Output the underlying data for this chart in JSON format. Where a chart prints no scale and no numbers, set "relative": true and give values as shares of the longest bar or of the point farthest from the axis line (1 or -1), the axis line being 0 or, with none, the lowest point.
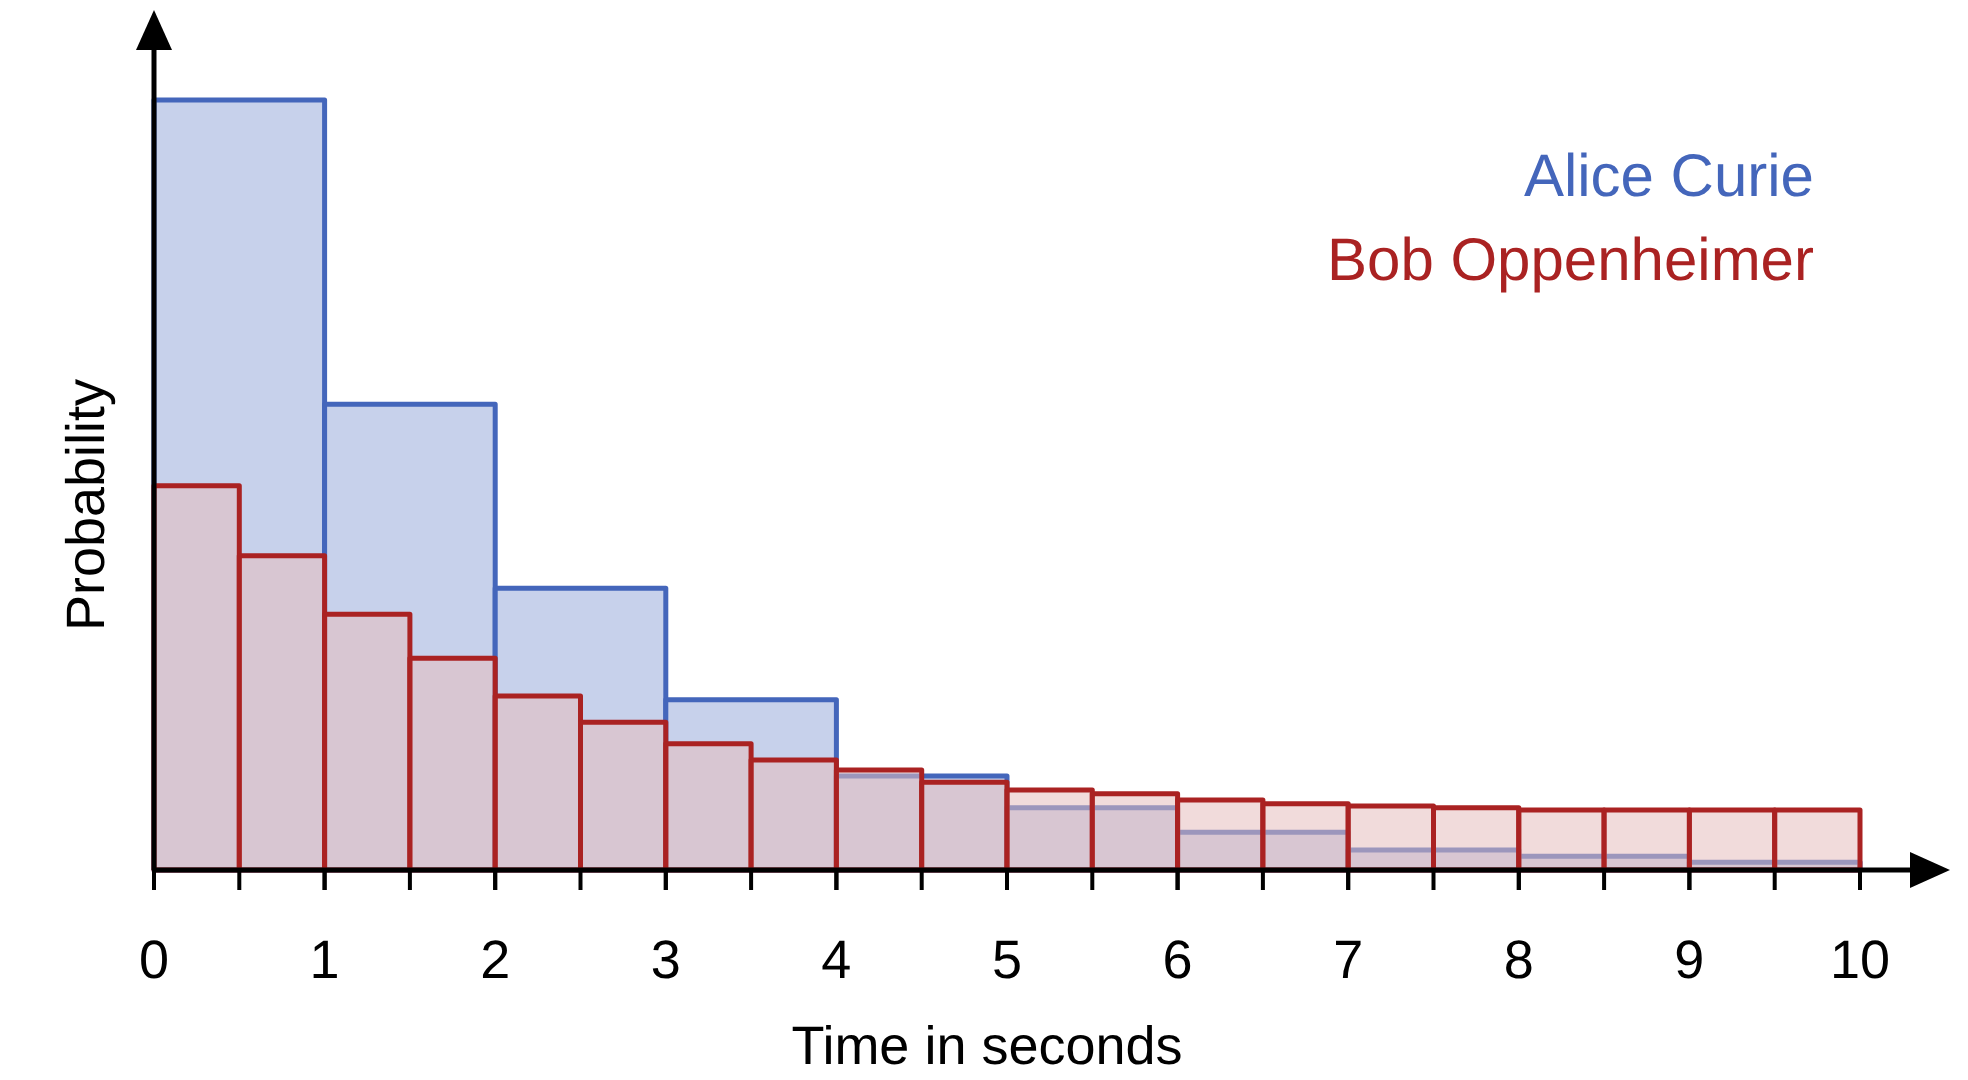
{
  "chart_data": {
    "type": "bar",
    "xlabel": "Time in seconds",
    "ylabel": "Probability",
    "relative": true,
    "xlim": [
      0,
      10
    ],
    "xticks": [
      0,
      1,
      2,
      3,
      4,
      5,
      6,
      7,
      8,
      9,
      10
    ],
    "grid": false,
    "series": [
      {
        "name": "Alice Curie",
        "color": "#4466bb",
        "x": [
          0.5,
          1.5,
          2.5,
          3.5,
          4.5,
          5.5,
          6.5,
          7.5,
          8.5,
          9.5
        ],
        "values": [
          1.0,
          0.605,
          0.366,
          0.221,
          0.122,
          0.081,
          0.049,
          0.026,
          0.018,
          0.01
        ]
      },
      {
        "name": "Bob Oppenheimer",
        "color": "#aa2222",
        "x": [
          0.25,
          0.75,
          1.25,
          1.75,
          2.25,
          2.75,
          3.25,
          3.75,
          4.25,
          4.75,
          5.25,
          5.75,
          6.25,
          6.75,
          7.25,
          7.75,
          8.25,
          8.75,
          9.25,
          9.75
        ],
        "values": [
          0.499,
          0.408,
          0.332,
          0.275,
          0.226,
          0.192,
          0.164,
          0.143,
          0.13,
          0.114,
          0.104,
          0.099,
          0.091,
          0.086,
          0.083,
          0.081,
          0.078,
          0.078,
          0.078,
          0.078
        ]
      }
    ]
  }
}
